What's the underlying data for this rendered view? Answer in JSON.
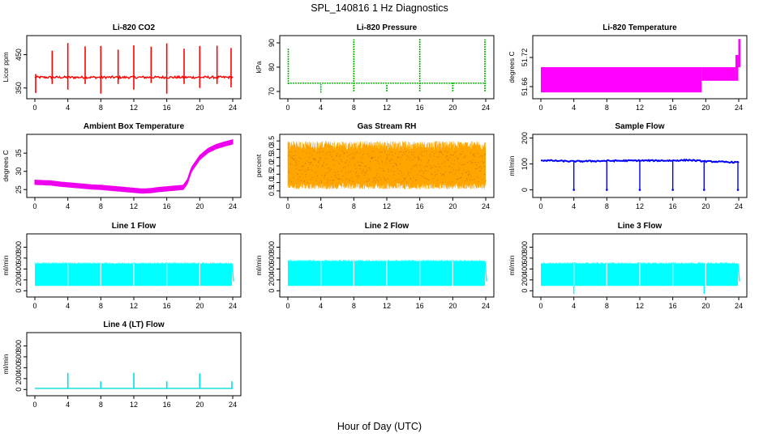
{
  "figure": {
    "title": "SPL_140816  1 Hz Diagnostics",
    "xlabel": "Hour of Day (UTC)"
  },
  "chart_data": [
    {
      "type": "line",
      "title": "Li-820 CO2",
      "ylabel": "Licor ppm",
      "color": "#ff0000",
      "xlim": [
        0,
        24
      ],
      "ylim": [
        325,
        500
      ],
      "xticks": [
        0,
        4,
        8,
        12,
        16,
        20,
        24
      ],
      "yticks": [
        350,
        450
      ],
      "baseline": 382,
      "noise": 7,
      "spikes": [
        {
          "x": 2.1,
          "lo": 362,
          "hi": 462
        },
        {
          "x": 4.0,
          "lo": 345,
          "hi": 485
        },
        {
          "x": 6.1,
          "lo": 362,
          "hi": 475
        },
        {
          "x": 8.0,
          "lo": 333,
          "hi": 476
        },
        {
          "x": 10.1,
          "lo": 362,
          "hi": 465
        },
        {
          "x": 12.0,
          "lo": 345,
          "hi": 478
        },
        {
          "x": 14.1,
          "lo": 365,
          "hi": 474
        },
        {
          "x": 16.0,
          "lo": 333,
          "hi": 484
        },
        {
          "x": 18.1,
          "lo": 362,
          "hi": 468
        },
        {
          "x": 20.0,
          "lo": 350,
          "hi": 476
        },
        {
          "x": 22.1,
          "lo": 362,
          "hi": 477
        },
        {
          "x": 23.8,
          "lo": 352,
          "hi": 470
        },
        {
          "x": 0.1,
          "lo": 335,
          "hi": 392
        }
      ]
    },
    {
      "type": "line",
      "title": "Li-820 Pressure",
      "ylabel": "kPa",
      "color": "#00bb00",
      "xlim": [
        0,
        24
      ],
      "ylim": [
        68,
        92
      ],
      "xticks": [
        0,
        4,
        8,
        12,
        16,
        20,
        24
      ],
      "yticks": [
        70,
        80,
        90
      ],
      "baseline": 73.4,
      "spikes": [
        {
          "x": 0.05,
          "lo": 73,
          "hi": 88
        },
        {
          "x": 4.0,
          "lo": 69.5,
          "hi": 73
        },
        {
          "x": 8.0,
          "lo": 70,
          "hi": 91.5
        },
        {
          "x": 12.0,
          "lo": 70,
          "hi": 73
        },
        {
          "x": 16.0,
          "lo": 70,
          "hi": 92
        },
        {
          "x": 20.0,
          "lo": 70,
          "hi": 74
        },
        {
          "x": 23.9,
          "lo": 70,
          "hi": 91.5
        }
      ]
    },
    {
      "type": "area",
      "title": "Li-820 Temperature",
      "ylabel": "degrees C",
      "color": "#ff00ff",
      "xlim": [
        0,
        24
      ],
      "ylim": [
        51.64,
        51.76
      ],
      "xticks": [
        0,
        4,
        8,
        12,
        16,
        20,
        24
      ],
      "yticks": [
        51.66,
        51.72
      ],
      "yticklabels": [
        "51.66",
        "51.72"
      ],
      "steps": [
        {
          "x0": 0,
          "x1": 19.5,
          "lo": 51.648,
          "hi": 51.7
        },
        {
          "x0": 19.5,
          "x1": 23.6,
          "lo": 51.672,
          "hi": 51.7
        },
        {
          "x0": 23.6,
          "x1": 23.95,
          "lo": 51.672,
          "hi": 51.725
        },
        {
          "x0": 23.95,
          "x1": 24.2,
          "lo": 51.7,
          "hi": 51.758
        }
      ]
    },
    {
      "type": "line",
      "title": "Ambient Box Temperature",
      "ylabel": "degrees C",
      "color": "#ee00ee",
      "xlim": [
        0,
        24
      ],
      "ylim": [
        23.5,
        39.5
      ],
      "xticks": [
        0,
        4,
        8,
        12,
        16,
        20,
        24
      ],
      "yticks": [
        25,
        30,
        35
      ],
      "x": [
        0,
        1,
        2,
        3,
        4,
        5,
        6,
        7,
        8,
        9,
        10,
        11,
        12,
        13,
        14,
        15,
        16,
        17,
        18,
        18.5,
        19,
        20,
        21,
        22,
        23,
        24
      ],
      "y": [
        27.0,
        26.9,
        26.8,
        26.5,
        26.3,
        26.1,
        25.9,
        25.7,
        25.6,
        25.4,
        25.2,
        25.0,
        24.8,
        24.6,
        24.7,
        25.0,
        25.2,
        25.4,
        25.6,
        27.2,
        30.5,
        33.8,
        35.7,
        36.8,
        37.5,
        38.1
      ],
      "spread": 0.6
    },
    {
      "type": "area",
      "title": "Gas Stream RH",
      "ylabel": "percent",
      "color": "#ffa500",
      "xlim": [
        0,
        24
      ],
      "ylim": [
        0.25,
        3.75
      ],
      "xticks": [
        0,
        4,
        8,
        12,
        16,
        20,
        24
      ],
      "yticks": [
        0.5,
        1.0,
        1.5,
        2.0,
        2.5,
        3.0,
        3.5
      ],
      "yticklabels": [
        "0.5",
        "1.0",
        "1.5",
        "2.0",
        "2.5",
        "3.0",
        "3.5"
      ],
      "band_lo": 0.6,
      "band_hi": 3.5,
      "core_lo": 1.0,
      "core_hi": 2.9
    },
    {
      "type": "line",
      "title": "Sample Flow",
      "ylabel": "ml/min",
      "color": "#0000ff",
      "xlim": [
        0,
        24
      ],
      "ylim": [
        -20,
        205
      ],
      "xticks": [
        0,
        4,
        8,
        12,
        16,
        20,
        24
      ],
      "yticks": [
        0,
        100,
        200
      ],
      "x": [
        0,
        4,
        8,
        12,
        16,
        18,
        20,
        24
      ],
      "y": [
        114,
        110,
        112,
        113,
        113,
        115,
        110,
        106
      ],
      "dips": [
        4.0,
        8.0,
        12.0,
        16.0,
        19.8,
        23.9
      ]
    },
    {
      "type": "area",
      "title": "Line 1 Flow",
      "ylabel": "ml/min",
      "color": "#00ffff",
      "xlim": [
        0,
        24
      ],
      "ylim": [
        -70,
        1000
      ],
      "xticks": [
        0,
        4,
        8,
        12,
        16,
        20,
        24
      ],
      "yticks": [
        0,
        200,
        400,
        600,
        800
      ],
      "lo": 90,
      "hi": 500,
      "gaps": [
        4.0,
        8.0,
        12.0,
        16.0,
        20.0
      ],
      "end": 23.9
    },
    {
      "type": "area",
      "title": "Line 2 Flow",
      "ylabel": "ml/min",
      "color": "#00ffff",
      "xlim": [
        0,
        24
      ],
      "ylim": [
        -70,
        1000
      ],
      "xticks": [
        0,
        4,
        8,
        12,
        16,
        20,
        24
      ],
      "yticks": [
        0,
        200,
        400,
        600,
        800
      ],
      "lo": 90,
      "hi": 545,
      "gaps": [
        4.0,
        8.0,
        12.0,
        16.0,
        20.0
      ],
      "end": 23.9
    },
    {
      "type": "area",
      "title": "Line 3 Flow",
      "ylabel": "ml/min",
      "color": "#00ffff",
      "xlim": [
        0,
        24
      ],
      "ylim": [
        -70,
        1000
      ],
      "xticks": [
        0,
        4,
        8,
        12,
        16,
        20,
        24
      ],
      "yticks": [
        0,
        200,
        400,
        600,
        800
      ],
      "lo": 90,
      "hi": 500,
      "gaps": [
        4.0,
        8.0,
        12.0,
        16.0,
        20.0
      ],
      "dips": [
        4.0,
        19.8
      ],
      "end": 23.9
    },
    {
      "type": "line",
      "title": "Line 4 (LT) Flow",
      "ylabel": "ml/min",
      "color": "#00dddd",
      "xlim": [
        0,
        24
      ],
      "ylim": [
        -70,
        1000
      ],
      "xticks": [
        0,
        4,
        8,
        12,
        16,
        20,
        24
      ],
      "yticks": [
        0,
        200,
        400,
        600,
        800
      ],
      "baseline": 20,
      "spikes": [
        {
          "x": 4.0,
          "lo": 20,
          "hi": 305
        },
        {
          "x": 8.0,
          "lo": 20,
          "hi": 150
        },
        {
          "x": 12.0,
          "lo": 20,
          "hi": 305
        },
        {
          "x": 16.0,
          "lo": 20,
          "hi": 150
        },
        {
          "x": 20.0,
          "lo": 20,
          "hi": 295
        },
        {
          "x": 23.9,
          "lo": 20,
          "hi": 150
        }
      ]
    }
  ]
}
